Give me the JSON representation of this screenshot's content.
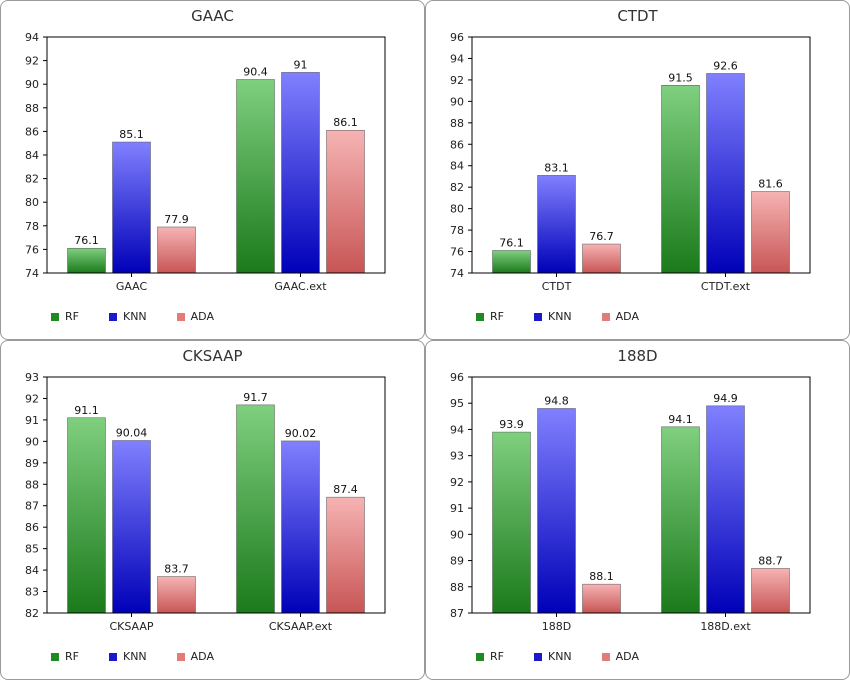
{
  "legend": [
    {
      "label": "RF",
      "color": "#1f8a1f"
    },
    {
      "label": "KNN",
      "color": "#1a1ac8"
    },
    {
      "label": "ADA",
      "color": "#e37b7b"
    }
  ],
  "chart_data": [
    {
      "type": "bar",
      "title": "GAAC",
      "categories": [
        "GAAC",
        "GAAC.ext"
      ],
      "series": [
        {
          "name": "RF",
          "values": [
            76.1,
            90.4
          ],
          "labels": [
            "76.1",
            "90.4"
          ]
        },
        {
          "name": "KNN",
          "values": [
            85.1,
            91
          ],
          "labels": [
            "85.1",
            "91"
          ]
        },
        {
          "name": "ADA",
          "values": [
            77.9,
            86.1
          ],
          "labels": [
            "77.9",
            "86.1"
          ]
        }
      ],
      "ylim": [
        74,
        94
      ],
      "yticks": [
        74,
        76,
        78,
        80,
        82,
        84,
        86,
        88,
        90,
        92,
        94
      ],
      "legend_position": "bottom-left"
    },
    {
      "type": "bar",
      "title": "CTDT",
      "categories": [
        "CTDT",
        "CTDT.ext"
      ],
      "series": [
        {
          "name": "RF",
          "values": [
            76.1,
            91.5
          ],
          "labels": [
            "76.1",
            "91.5"
          ]
        },
        {
          "name": "KNN",
          "values": [
            83.1,
            92.6
          ],
          "labels": [
            "83.1",
            "92.6"
          ]
        },
        {
          "name": "ADA",
          "values": [
            76.7,
            81.6
          ],
          "labels": [
            "76.7",
            "81.6"
          ]
        }
      ],
      "ylim": [
        74,
        96
      ],
      "yticks": [
        74,
        76,
        78,
        80,
        82,
        84,
        86,
        88,
        90,
        92,
        94,
        96
      ],
      "legend_position": "bottom-left"
    },
    {
      "type": "bar",
      "title": "CKSAAP",
      "categories": [
        "CKSAAP",
        "CKSAAP.ext"
      ],
      "series": [
        {
          "name": "RF",
          "values": [
            91.1,
            91.7
          ],
          "labels": [
            "91.1",
            "91.7"
          ]
        },
        {
          "name": "KNN",
          "values": [
            90.04,
            90.02
          ],
          "labels": [
            "90.04",
            "90.02"
          ]
        },
        {
          "name": "ADA",
          "values": [
            83.7,
            87.4
          ],
          "labels": [
            "83.7",
            "87.4"
          ]
        }
      ],
      "ylim": [
        82,
        93
      ],
      "yticks": [
        82,
        83,
        84,
        85,
        86,
        87,
        88,
        89,
        90,
        91,
        92,
        93
      ],
      "legend_position": "bottom-left"
    },
    {
      "type": "bar",
      "title": "188D",
      "categories": [
        "188D",
        "188D.ext"
      ],
      "series": [
        {
          "name": "RF",
          "values": [
            93.9,
            94.1
          ],
          "labels": [
            "93.9",
            "94.1"
          ]
        },
        {
          "name": "KNN",
          "values": [
            94.8,
            94.9
          ],
          "labels": [
            "94.8",
            "94.9"
          ]
        },
        {
          "name": "ADA",
          "values": [
            88.1,
            88.7
          ],
          "labels": [
            "88.1",
            "88.7"
          ]
        }
      ],
      "ylim": [
        87,
        96
      ],
      "yticks": [
        87,
        88,
        89,
        90,
        91,
        92,
        93,
        94,
        95,
        96
      ],
      "legend_position": "bottom-left"
    }
  ]
}
